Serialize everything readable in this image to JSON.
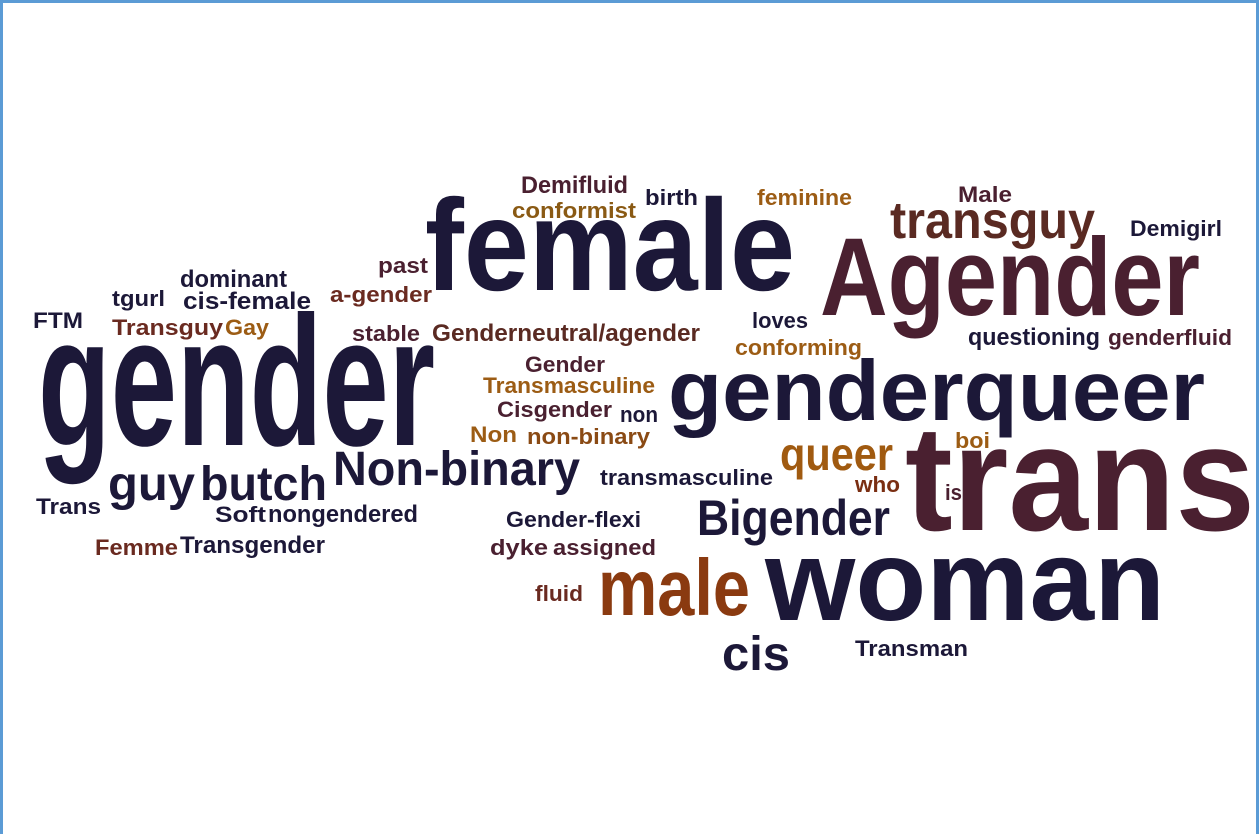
{
  "words": [
    {
      "text": "gender",
      "color": "#1c1838"
    },
    {
      "text": "female",
      "color": "#1c1838"
    },
    {
      "text": "Agender",
      "color": "#4a2030"
    },
    {
      "text": "genderqueer",
      "color": "#1c1838"
    },
    {
      "text": "trans",
      "color": "#4a2030"
    },
    {
      "text": "woman",
      "color": "#1c1838"
    },
    {
      "text": "male",
      "color": "#8a3a10"
    },
    {
      "text": "transguy",
      "color": "#5a2a22"
    },
    {
      "text": "Non-binary",
      "color": "#1c1838"
    },
    {
      "text": "butch",
      "color": "#1c1838"
    },
    {
      "text": "guy",
      "color": "#1c1838"
    },
    {
      "text": "Bigender",
      "color": "#1c1838"
    },
    {
      "text": "queer",
      "color": "#a05a10"
    },
    {
      "text": "cis",
      "color": "#1c1838"
    },
    {
      "text": "Demifluid",
      "color": "#4a2030"
    },
    {
      "text": "conformist",
      "color": "#8a5a14"
    },
    {
      "text": "birth",
      "color": "#1c1838"
    },
    {
      "text": "feminine",
      "color": "#9c5c14"
    },
    {
      "text": "Male",
      "color": "#4a2030"
    },
    {
      "text": "Demigirl",
      "color": "#1c1838"
    },
    {
      "text": "dominant",
      "color": "#1c1838"
    },
    {
      "text": "past",
      "color": "#4a2030"
    },
    {
      "text": "tgurl",
      "color": "#1c1838"
    },
    {
      "text": "cis-female",
      "color": "#1c1838"
    },
    {
      "text": "a-gender",
      "color": "#6a2a20"
    },
    {
      "text": "FTM",
      "color": "#1c1838"
    },
    {
      "text": "Transguy",
      "color": "#6a2a20"
    },
    {
      "text": "Gay",
      "color": "#9c5c14"
    },
    {
      "text": "stable",
      "color": "#4a2030"
    },
    {
      "text": "Genderneutral/agender",
      "color": "#5a2a22"
    },
    {
      "text": "loves",
      "color": "#1c1838"
    },
    {
      "text": "conforming",
      "color": "#9c5c14"
    },
    {
      "text": "questioning",
      "color": "#1c1838"
    },
    {
      "text": "genderfluid",
      "color": "#4a2030"
    },
    {
      "text": "Gender",
      "color": "#4a2030"
    },
    {
      "text": "Transmasculine",
      "color": "#9c5c14"
    },
    {
      "text": "Cisgender",
      "color": "#4a2030"
    },
    {
      "text": "non",
      "color": "#1c1838"
    },
    {
      "text": "Non",
      "color": "#9c5c14"
    },
    {
      "text": "non-binary",
      "color": "#8a4a14"
    },
    {
      "text": "boi",
      "color": "#9c5c14"
    },
    {
      "text": "transmasculine",
      "color": "#1c1838"
    },
    {
      "text": "who",
      "color": "#7a2e12"
    },
    {
      "text": "is",
      "color": "#4a2030"
    },
    {
      "text": "Trans",
      "color": "#1c1838"
    },
    {
      "text": "Soft",
      "color": "#1c1838"
    },
    {
      "text": "nongendered",
      "color": "#1c1838"
    },
    {
      "text": "Gender-flexi",
      "color": "#1c1838"
    },
    {
      "text": "Femme",
      "color": "#6a2a20"
    },
    {
      "text": "Transgender",
      "color": "#1c1838"
    },
    {
      "text": "dyke",
      "color": "#4a2030"
    },
    {
      "text": "assigned",
      "color": "#4a2030"
    },
    {
      "text": "fluid",
      "color": "#6a2a20"
    },
    {
      "text": "Transman",
      "color": "#1c1838"
    }
  ]
}
